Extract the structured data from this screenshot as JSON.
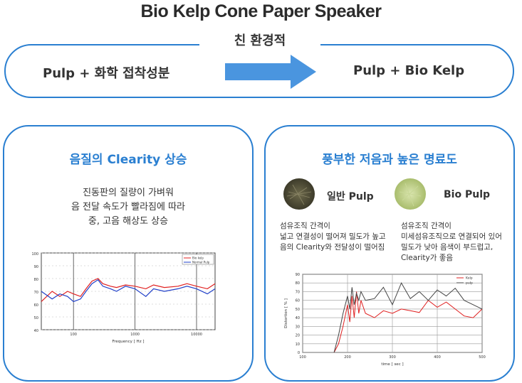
{
  "title": "Bio Kelp Cone Paper Speaker",
  "top": {
    "label": "친 환경적",
    "left": "Pulp +  화학 접착성분",
    "right": "Pulp + Bio Kelp"
  },
  "left_card": {
    "title": "음질의 Clearity 상승",
    "desc_lines": [
      "진동판의 질량이 가벼워",
      "음 전달 속도가 빨라짐에 따라",
      "중, 고음 해상도 상승"
    ],
    "chart": {
      "y_ticks": [
        "100",
        "90",
        "80",
        "70",
        "60",
        "50",
        "40"
      ],
      "x_ticks": [
        "100",
        "1000",
        "10000"
      ],
      "xlabel": "Frequency [ Hz ]",
      "legend": [
        "Bio kelp",
        "Normal Pulp"
      ]
    }
  },
  "right_card": {
    "title": "풍부한 저음과 높은 명료도",
    "normal": {
      "label": "일반 Pulp",
      "lines": [
        "섬유조직 간격이",
        "넓고 연결성이 떨어져 밀도가 높고",
        "음의 Clearity와 전달성이 떨어짐"
      ]
    },
    "bio": {
      "label": "Bio Pulp",
      "lines": [
        "섬유조직 간격이",
        "미세섬유조직으로 연결되어 있어",
        "밀도가 낮아 음색이 부드럽고,",
        "Clearity가 좋음"
      ]
    },
    "chart": {
      "y_ticks": [
        "90",
        "80",
        "70",
        "60",
        "50",
        "40",
        "30",
        "20",
        "10",
        "0"
      ],
      "x_ticks": [
        "100",
        "200",
        "300",
        "400",
        "500"
      ],
      "xlabel": "time [ sec ]",
      "ylabel": "Distortion [ % ]",
      "legend": [
        "Kelp",
        "pulp"
      ]
    }
  },
  "chart_data": [
    {
      "type": "line",
      "x": [
        30,
        45,
        60,
        80,
        100,
        130,
        160,
        200,
        250,
        300,
        400,
        500,
        700,
        1000,
        1500,
        2000,
        3000,
        5000,
        7000,
        10000,
        15000,
        20000
      ],
      "series": [
        {
          "name": "Bio kelp",
          "values": [
            62,
            70,
            66,
            70,
            68,
            66,
            72,
            78,
            80,
            76,
            74,
            73,
            75,
            74,
            72,
            75,
            73,
            74,
            76,
            74,
            72,
            76
          ]
        },
        {
          "name": "Normal Pulp",
          "values": [
            70,
            64,
            68,
            66,
            62,
            64,
            70,
            76,
            79,
            74,
            72,
            70,
            74,
            72,
            66,
            72,
            70,
            72,
            74,
            72,
            68,
            72
          ]
        }
      ],
      "xlabel": "Frequency [ Hz ]",
      "ylim": [
        40,
        100
      ],
      "xscale": "log"
    },
    {
      "type": "line",
      "x": [
        170,
        180,
        190,
        200,
        205,
        210,
        215,
        220,
        225,
        230,
        240,
        260,
        280,
        300,
        320,
        340,
        360,
        380,
        400,
        420,
        440,
        460,
        480,
        500
      ],
      "series": [
        {
          "name": "Kelp",
          "values": [
            0,
            10,
            30,
            55,
            35,
            65,
            40,
            70,
            45,
            60,
            45,
            40,
            48,
            45,
            50,
            48,
            46,
            60,
            52,
            58,
            50,
            42,
            40,
            50
          ]
        },
        {
          "name": "pulp",
          "values": [
            0,
            20,
            45,
            65,
            50,
            75,
            55,
            68,
            60,
            70,
            60,
            62,
            75,
            55,
            80,
            62,
            70,
            60,
            72,
            65,
            74,
            60,
            55,
            50
          ]
        }
      ],
      "xlabel": "time [ sec ]",
      "ylabel": "Distortion [ % ]",
      "ylim": [
        0,
        90
      ],
      "xlim": [
        100,
        500
      ]
    }
  ]
}
